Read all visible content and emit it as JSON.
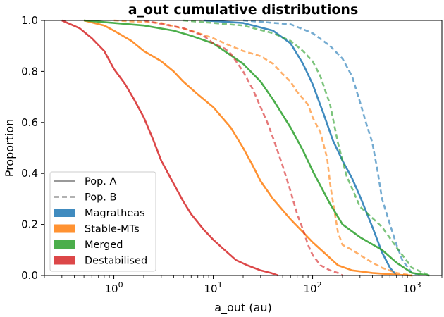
{
  "chart_data": {
    "type": "line",
    "title": "a_out cumulative distributions",
    "xlabel": "a_out  (au)",
    "ylabel": "Proportion",
    "xscale": "log",
    "xlim": [
      0.2,
      2000
    ],
    "ylim": [
      0,
      1
    ],
    "x_ticks": [
      {
        "value": 1,
        "base": "10",
        "exp": "0"
      },
      {
        "value": 10,
        "base": "10",
        "exp": "1"
      },
      {
        "value": 100,
        "base": "10",
        "exp": "2"
      },
      {
        "value": 1000,
        "base": "10",
        "exp": "3"
      }
    ],
    "y_ticks": [
      "0.0",
      "0.2",
      "0.4",
      "0.6",
      "0.8",
      "1.0"
    ],
    "y_tick_values": [
      0,
      0.2,
      0.4,
      0.6,
      0.8,
      1.0
    ],
    "grid": false,
    "legend_position": "lower-left",
    "legend": {
      "styles": [
        {
          "label": "Pop. A",
          "dash": false,
          "color": "#999999"
        },
        {
          "label": "Pop. B",
          "dash": true,
          "color": "#999999"
        }
      ],
      "groups": [
        {
          "label": "Magratheas",
          "color": "#1f77b4"
        },
        {
          "label": "Stable-MTs",
          "color": "#ff7f0e"
        },
        {
          "label": "Merged",
          "color": "#2ca02c"
        },
        {
          "label": "Destabilised",
          "color": "#d62728"
        }
      ]
    },
    "series": [
      {
        "group": "Magratheas",
        "population": "Pop. A",
        "color": "#1f77b4",
        "dash": false,
        "points": [
          [
            8,
            1.0
          ],
          [
            20,
            0.99
          ],
          [
            40,
            0.96
          ],
          [
            60,
            0.91
          ],
          [
            80,
            0.83
          ],
          [
            100,
            0.75
          ],
          [
            130,
            0.63
          ],
          [
            160,
            0.53
          ],
          [
            200,
            0.45
          ],
          [
            250,
            0.38
          ],
          [
            300,
            0.31
          ],
          [
            400,
            0.19
          ],
          [
            500,
            0.09
          ],
          [
            600,
            0.03
          ],
          [
            700,
            0.0
          ]
        ]
      },
      {
        "group": "Magratheas",
        "population": "Pop. B",
        "color": "#1f77b4",
        "dash": true,
        "points": [
          [
            20,
            1.0
          ],
          [
            60,
            0.985
          ],
          [
            100,
            0.95
          ],
          [
            150,
            0.9
          ],
          [
            200,
            0.85
          ],
          [
            250,
            0.78
          ],
          [
            300,
            0.68
          ],
          [
            350,
            0.59
          ],
          [
            400,
            0.52
          ],
          [
            450,
            0.41
          ],
          [
            500,
            0.3
          ],
          [
            600,
            0.2
          ],
          [
            700,
            0.12
          ],
          [
            800,
            0.06
          ],
          [
            1000,
            0.01
          ],
          [
            1200,
            0.0
          ]
        ]
      },
      {
        "group": "Stable-MTs",
        "population": "Pop. A",
        "color": "#ff7f0e",
        "dash": false,
        "points": [
          [
            0.5,
            1.0
          ],
          [
            0.8,
            0.98
          ],
          [
            1,
            0.96
          ],
          [
            1.5,
            0.92
          ],
          [
            2,
            0.88
          ],
          [
            3,
            0.84
          ],
          [
            4,
            0.8
          ],
          [
            5,
            0.76
          ],
          [
            7,
            0.71
          ],
          [
            10,
            0.66
          ],
          [
            15,
            0.58
          ],
          [
            20,
            0.5
          ],
          [
            25,
            0.43
          ],
          [
            30,
            0.37
          ],
          [
            40,
            0.3
          ],
          [
            60,
            0.22
          ],
          [
            80,
            0.17
          ],
          [
            100,
            0.13
          ],
          [
            130,
            0.09
          ],
          [
            180,
            0.04
          ],
          [
            250,
            0.02
          ],
          [
            400,
            0.01
          ],
          [
            700,
            0.003
          ],
          [
            1000,
            0.0
          ]
        ]
      },
      {
        "group": "Stable-MTs",
        "population": "Pop. B",
        "color": "#ff7f0e",
        "dash": true,
        "points": [
          [
            1,
            1.0
          ],
          [
            3,
            0.99
          ],
          [
            6,
            0.96
          ],
          [
            10,
            0.93
          ],
          [
            15,
            0.9
          ],
          [
            20,
            0.88
          ],
          [
            30,
            0.86
          ],
          [
            40,
            0.83
          ],
          [
            50,
            0.79
          ],
          [
            60,
            0.76
          ],
          [
            70,
            0.72
          ],
          [
            90,
            0.67
          ],
          [
            100,
            0.62
          ],
          [
            120,
            0.56
          ],
          [
            140,
            0.46
          ],
          [
            150,
            0.36
          ],
          [
            160,
            0.29
          ],
          [
            180,
            0.17
          ],
          [
            200,
            0.12
          ],
          [
            250,
            0.1
          ],
          [
            300,
            0.08
          ],
          [
            400,
            0.05
          ],
          [
            500,
            0.03
          ],
          [
            700,
            0.01
          ],
          [
            1000,
            0.0
          ]
        ]
      },
      {
        "group": "Merged",
        "population": "Pop. A",
        "color": "#2ca02c",
        "dash": false,
        "points": [
          [
            0.5,
            1.0
          ],
          [
            1,
            0.99
          ],
          [
            2,
            0.98
          ],
          [
            4,
            0.96
          ],
          [
            6,
            0.94
          ],
          [
            10,
            0.91
          ],
          [
            20,
            0.83
          ],
          [
            30,
            0.76
          ],
          [
            40,
            0.69
          ],
          [
            60,
            0.58
          ],
          [
            80,
            0.49
          ],
          [
            100,
            0.41
          ],
          [
            150,
            0.28
          ],
          [
            200,
            0.2
          ],
          [
            300,
            0.15
          ],
          [
            500,
            0.1
          ],
          [
            700,
            0.05
          ],
          [
            1000,
            0.01
          ],
          [
            1500,
            0.0
          ]
        ]
      },
      {
        "group": "Merged",
        "population": "Pop. B",
        "color": "#2ca02c",
        "dash": true,
        "points": [
          [
            5,
            1.0
          ],
          [
            20,
            0.98
          ],
          [
            40,
            0.95
          ],
          [
            60,
            0.92
          ],
          [
            80,
            0.88
          ],
          [
            100,
            0.84
          ],
          [
            120,
            0.78
          ],
          [
            150,
            0.67
          ],
          [
            180,
            0.52
          ],
          [
            220,
            0.39
          ],
          [
            300,
            0.27
          ],
          [
            500,
            0.19
          ],
          [
            700,
            0.11
          ],
          [
            1000,
            0.03
          ],
          [
            1500,
            0.0
          ]
        ]
      },
      {
        "group": "Destabilised",
        "population": "Pop. A",
        "color": "#d62728",
        "dash": false,
        "points": [
          [
            0.3,
            1.0
          ],
          [
            0.45,
            0.97
          ],
          [
            0.6,
            0.93
          ],
          [
            0.8,
            0.88
          ],
          [
            1,
            0.81
          ],
          [
            1.3,
            0.75
          ],
          [
            1.6,
            0.69
          ],
          [
            2,
            0.62
          ],
          [
            2.5,
            0.53
          ],
          [
            3,
            0.45
          ],
          [
            4,
            0.36
          ],
          [
            5,
            0.29
          ],
          [
            6,
            0.24
          ],
          [
            8,
            0.18
          ],
          [
            10,
            0.14
          ],
          [
            13,
            0.1
          ],
          [
            17,
            0.06
          ],
          [
            22,
            0.04
          ],
          [
            30,
            0.02
          ],
          [
            38,
            0.01
          ],
          [
            45,
            0.0
          ]
        ]
      },
      {
        "group": "Destabilised",
        "population": "Pop. B",
        "color": "#d62728",
        "dash": true,
        "points": [
          [
            2,
            1.0
          ],
          [
            5,
            0.97
          ],
          [
            8,
            0.94
          ],
          [
            10,
            0.91
          ],
          [
            13,
            0.89
          ],
          [
            15,
            0.87
          ],
          [
            20,
            0.8
          ],
          [
            25,
            0.73
          ],
          [
            30,
            0.66
          ],
          [
            35,
            0.6
          ],
          [
            40,
            0.54
          ],
          [
            50,
            0.43
          ],
          [
            60,
            0.33
          ],
          [
            70,
            0.24
          ],
          [
            80,
            0.18
          ],
          [
            90,
            0.12
          ],
          [
            100,
            0.08
          ],
          [
            120,
            0.04
          ],
          [
            150,
            0.02
          ],
          [
            180,
            0.01
          ],
          [
            200,
            0.0
          ]
        ]
      }
    ]
  }
}
